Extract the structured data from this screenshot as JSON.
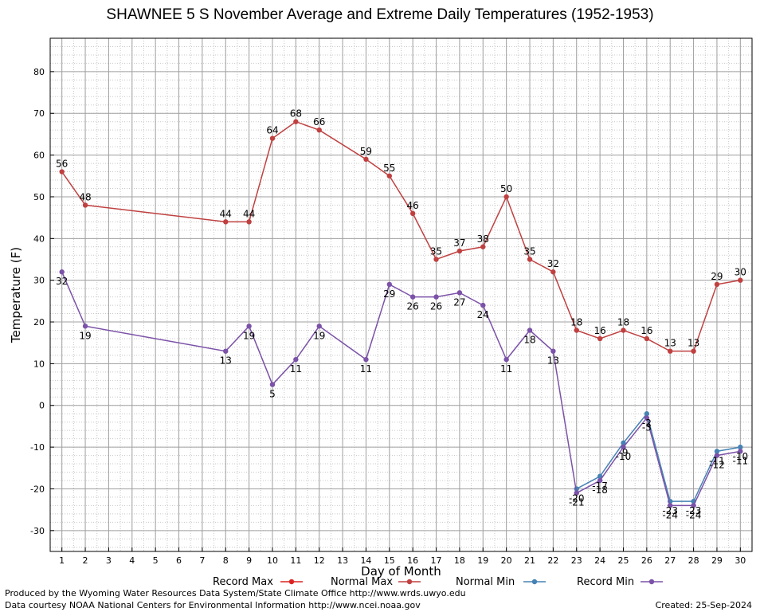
{
  "chart_data": {
    "type": "line",
    "title": "SHAWNEE 5 S November Average and Extreme Daily Temperatures (1952-1953)",
    "xlabel": "Day of Month",
    "ylabel": "Temperature (F)",
    "xlim": [
      0.5,
      30.5
    ],
    "ylim": [
      -35,
      88
    ],
    "x_ticks": [
      1,
      2,
      3,
      4,
      5,
      6,
      7,
      8,
      9,
      10,
      11,
      12,
      13,
      14,
      15,
      16,
      17,
      18,
      19,
      20,
      21,
      22,
      23,
      24,
      25,
      26,
      27,
      28,
      29,
      30
    ],
    "y_ticks": [
      -30,
      -20,
      -10,
      0,
      10,
      20,
      30,
      40,
      50,
      60,
      70,
      80
    ],
    "grid": true,
    "legend_position": "bottom",
    "series": [
      {
        "name": "Record Max",
        "color": "#dd2222",
        "points": [],
        "labels": false
      },
      {
        "name": "Normal Max",
        "color": "#c04040",
        "points": [
          [
            1,
            56
          ],
          [
            2,
            48
          ],
          [
            8,
            44
          ],
          [
            9,
            44
          ],
          [
            10,
            64
          ],
          [
            11,
            68
          ],
          [
            12,
            66
          ],
          [
            14,
            59
          ],
          [
            15,
            55
          ],
          [
            16,
            46
          ],
          [
            17,
            35
          ],
          [
            18,
            37
          ],
          [
            19,
            38
          ],
          [
            20,
            50
          ],
          [
            21,
            35
          ],
          [
            22,
            32
          ],
          [
            23,
            18
          ],
          [
            24,
            16
          ],
          [
            25,
            18
          ],
          [
            26,
            16
          ],
          [
            27,
            13
          ],
          [
            28,
            13
          ],
          [
            29,
            29
          ],
          [
            30,
            30
          ]
        ],
        "labels": true,
        "label_pos": "above"
      },
      {
        "name": "Normal Min",
        "color": "#4682b4",
        "points": [
          [
            23,
            -20
          ],
          [
            24,
            -17
          ],
          [
            25,
            -9
          ],
          [
            26,
            -2
          ],
          [
            27,
            -23
          ],
          [
            28,
            -23
          ],
          [
            29,
            -11
          ],
          [
            30,
            -10
          ]
        ],
        "labels": true,
        "label_pos": "below"
      },
      {
        "name": "Record Min",
        "color": "#7b52a8",
        "points": [
          [
            1,
            32
          ],
          [
            2,
            19
          ],
          [
            8,
            13
          ],
          [
            9,
            19
          ],
          [
            10,
            5
          ],
          [
            11,
            11
          ],
          [
            12,
            19
          ],
          [
            14,
            11
          ],
          [
            15,
            29
          ],
          [
            16,
            26
          ],
          [
            17,
            26
          ],
          [
            18,
            27
          ],
          [
            19,
            24
          ],
          [
            20,
            11
          ],
          [
            21,
            18
          ],
          [
            22,
            13
          ],
          [
            23,
            -21
          ],
          [
            24,
            -18
          ],
          [
            25,
            -10
          ],
          [
            26,
            -3
          ],
          [
            27,
            -24
          ],
          [
            28,
            -24
          ],
          [
            29,
            -12
          ],
          [
            30,
            -11
          ]
        ],
        "labels": true,
        "label_pos": "below"
      }
    ]
  },
  "footer": {
    "left_line1": "Produced by the Wyoming Water Resources Data System/State Climate Office http://www.wrds.uwyo.edu",
    "left_line2": "Data courtesy NOAA National Centers for Environmental Information http://www.ncei.noaa.gov",
    "created": "Created:  25-Sep-2024"
  }
}
